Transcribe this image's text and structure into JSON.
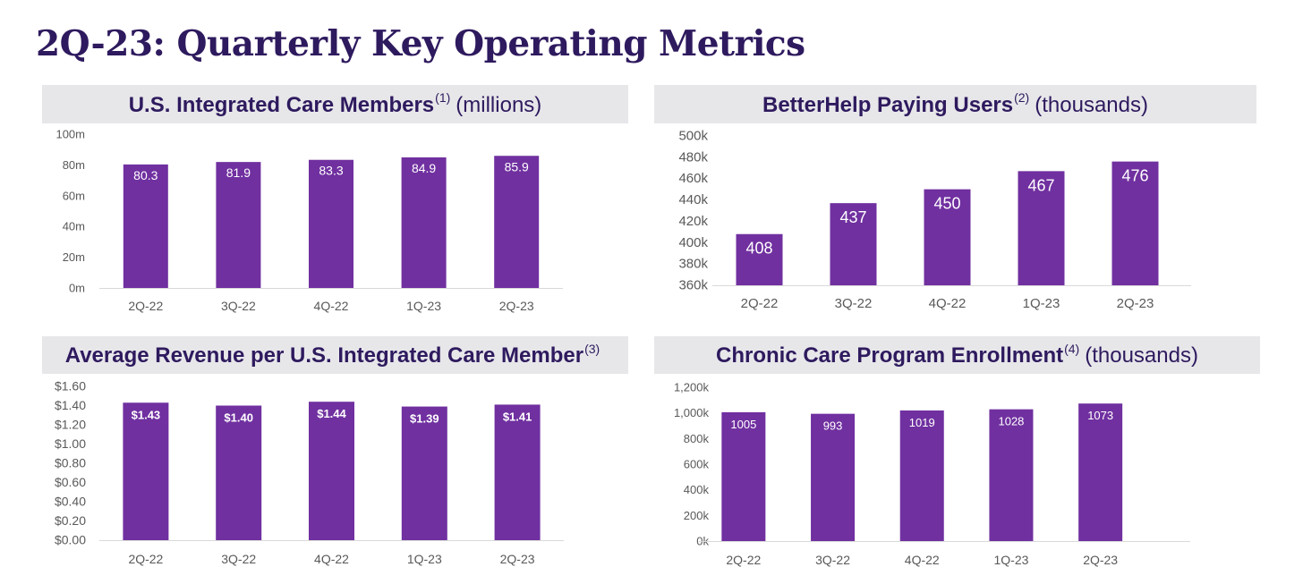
{
  "title": "2Q-23: Quarterly Key Operating Metrics",
  "colors": {
    "bar": "#7030a0",
    "title": "#2e1a5e",
    "header_bg": "#e7e7ea"
  },
  "chart_data": [
    {
      "type": "bar",
      "title": "U.S. Integrated Care Members",
      "footnote": "(1)",
      "unit": "(millions)",
      "categories": [
        "2Q-22",
        "3Q-22",
        "4Q-22",
        "1Q-23",
        "2Q-23"
      ],
      "values": [
        80.3,
        81.9,
        83.3,
        84.9,
        85.9
      ],
      "data_labels": [
        "80.3",
        "81.9",
        "83.3",
        "84.9",
        "85.9"
      ],
      "yticks": [
        0,
        20,
        40,
        60,
        80,
        100
      ],
      "ytick_labels": [
        "0m",
        "20m",
        "40m",
        "60m",
        "80m",
        "100m"
      ],
      "ylim": [
        0,
        100
      ],
      "grid": false
    },
    {
      "type": "bar",
      "title": "BetterHelp Paying Users",
      "footnote": "(2)",
      "unit": "(thousands)",
      "categories": [
        "2Q-22",
        "3Q-22",
        "4Q-22",
        "1Q-23",
        "2Q-23"
      ],
      "values": [
        408,
        437,
        450,
        467,
        476
      ],
      "data_labels": [
        "408",
        "437",
        "450",
        "467",
        "476"
      ],
      "yticks": [
        360,
        380,
        400,
        420,
        440,
        460,
        480,
        500
      ],
      "ytick_labels": [
        "360k",
        "380k",
        "400k",
        "420k",
        "440k",
        "460k",
        "480k",
        "500k"
      ],
      "ylim": [
        360,
        500
      ],
      "grid": false
    },
    {
      "type": "bar",
      "title": "Average Revenue per U.S. Integrated Care Member",
      "footnote": "(3)",
      "unit": "",
      "categories": [
        "2Q-22",
        "3Q-22",
        "4Q-22",
        "1Q-23",
        "2Q-23"
      ],
      "values": [
        1.43,
        1.4,
        1.44,
        1.39,
        1.41
      ],
      "data_labels": [
        "$1.43",
        "$1.40",
        "$1.44",
        "$1.39",
        "$1.41"
      ],
      "yticks": [
        0,
        0.2,
        0.4,
        0.6,
        0.8,
        1.0,
        1.2,
        1.4,
        1.6
      ],
      "ytick_labels": [
        "$0.00",
        "$0.20",
        "$0.40",
        "$0.60",
        "$0.80",
        "$1.00",
        "$1.20",
        "$1.40",
        "$1.60"
      ],
      "ylim": [
        0,
        1.6
      ],
      "grid": false
    },
    {
      "type": "bar",
      "title": "Chronic Care Program Enrollment",
      "footnote": "(4)",
      "unit": "(thousands)",
      "categories": [
        "2Q-22",
        "3Q-22",
        "4Q-22",
        "1Q-23",
        "2Q-23"
      ],
      "values": [
        1005,
        993,
        1019,
        1028,
        1073
      ],
      "data_labels": [
        "1005",
        "993",
        "1019",
        "1028",
        "1073"
      ],
      "yticks": [
        0,
        200,
        400,
        600,
        800,
        1000,
        1200
      ],
      "ytick_labels": [
        "0k",
        "200k",
        "400k",
        "600k",
        "800k",
        "1,000k",
        "1,200k"
      ],
      "ylim": [
        0,
        1200
      ],
      "grid": false
    }
  ]
}
